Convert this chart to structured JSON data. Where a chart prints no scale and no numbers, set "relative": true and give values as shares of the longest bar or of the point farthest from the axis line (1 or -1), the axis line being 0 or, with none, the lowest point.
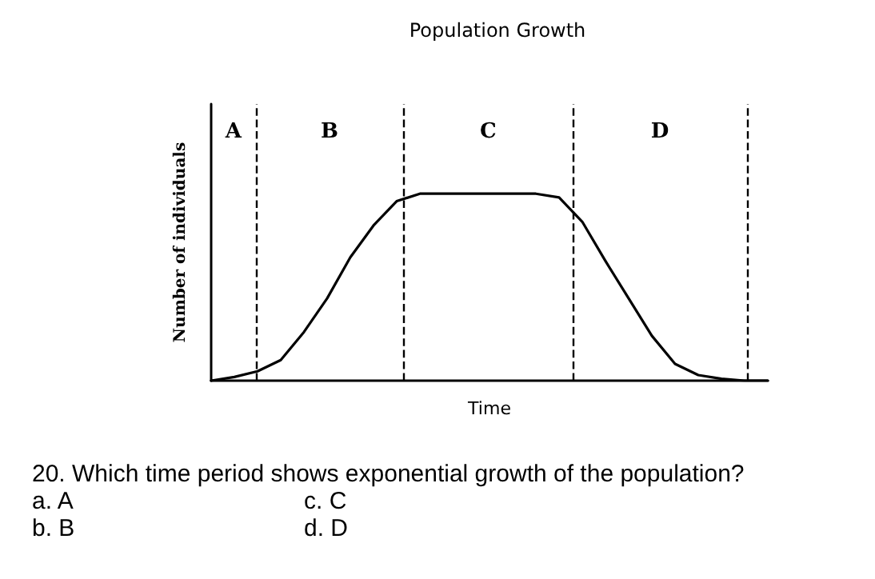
{
  "chart_data": {
    "type": "line",
    "title": "Population Growth",
    "xlabel": "Time",
    "ylabel": "Number of individuals",
    "relative": true,
    "marker": "none",
    "line_style": "solid",
    "categories": [
      null,
      null,
      null,
      null,
      null,
      null,
      null,
      null,
      null,
      null,
      null,
      null,
      null,
      null,
      null,
      null,
      null,
      null,
      null,
      null,
      null,
      null,
      null,
      null,
      null
    ],
    "series": [
      {
        "color": "#000000",
        "values": [
          0,
          0.02,
          0.05,
          0.11,
          0.26,
          0.44,
          0.66,
          0.83,
          0.96,
          1,
          1,
          1,
          1,
          1,
          1,
          0.98,
          0.85,
          0.64,
          0.44,
          0.24,
          0.09,
          0.03,
          0.01,
          0,
          0
        ]
      }
    ],
    "annotations": [
      "A",
      "B",
      "C",
      "D",
      "20. Which time period shows exponential growth of the population?",
      "a. A",
      "c. C",
      "b. B",
      "d. D"
    ]
  }
}
